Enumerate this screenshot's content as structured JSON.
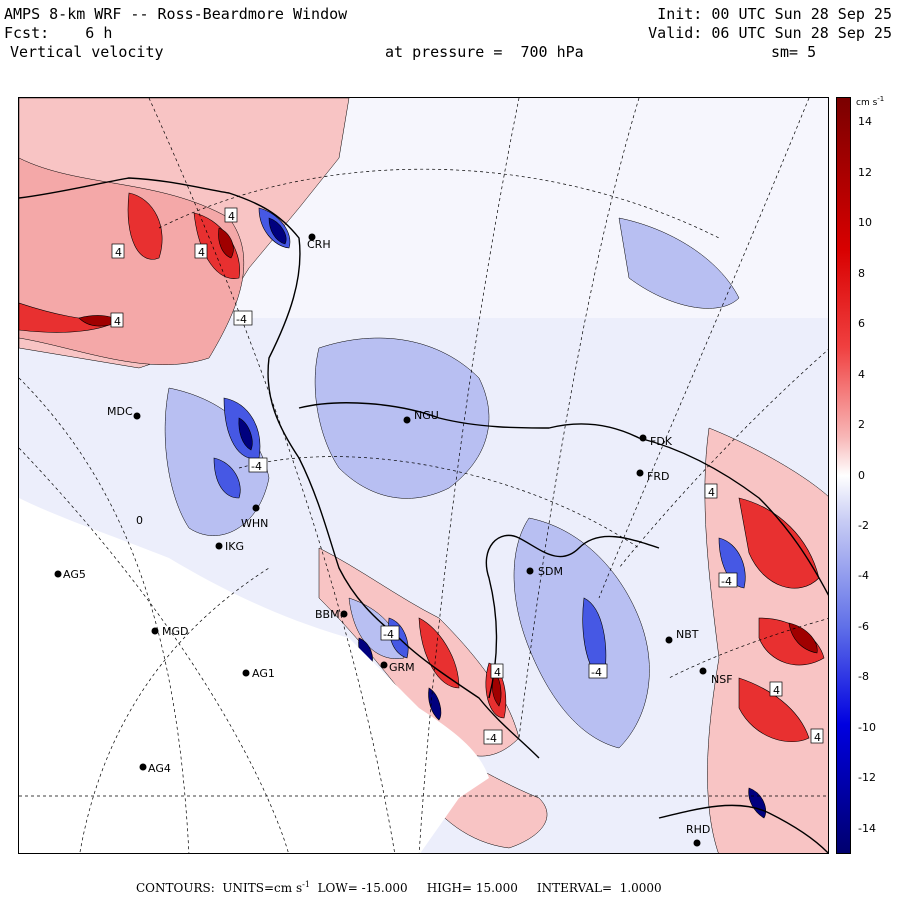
{
  "header": {
    "title": "AMPS 8-km WRF -- Ross-Beardmore Window",
    "init": "Init: 00 UTC Sun 28 Sep 25",
    "fcst": "Fcst:    6 h",
    "valid": "Valid: 06 UTC Sun 28 Sep 25",
    "field": "Vertical velocity",
    "level": "at pressure =  700 hPa",
    "smooth": "sm= 5"
  },
  "colorbar": {
    "units": "cm s-1",
    "units_base": "cm s",
    "units_exp": "-1",
    "ticks": [
      "14",
      "12",
      "10",
      "8",
      "6",
      "4",
      "2",
      "0",
      "-2",
      "-4",
      "-6",
      "-8",
      "-10",
      "-12",
      "-14"
    ],
    "range": [
      -15,
      15
    ],
    "colors": {
      "max": "#7a0000",
      "strong_pos": "#d80000",
      "mid_pos": "#f04040",
      "weak_pos": "#f8b8b8",
      "near_zero": "#ffffff",
      "weak_neg": "#c8ccf4",
      "mid_neg": "#6070e8",
      "strong_neg": "#0000e0",
      "min": "#00006e"
    }
  },
  "stations": [
    "CRH",
    "MDC",
    "NGU",
    "FDK",
    "FRD",
    "WHN",
    "IKG",
    "AG5",
    "SDM",
    "BBM",
    "MGD",
    "NBT",
    "AG1",
    "GRM",
    "NSF",
    "AG4",
    "RHD"
  ],
  "contour_labels": [
    "4",
    "4",
    "4",
    "4",
    "-4",
    "-4",
    "0",
    "4",
    "-4",
    "-4",
    "4",
    "-4",
    "-4",
    "4",
    "4"
  ],
  "footer": {
    "contours_label": "CONTOURS:",
    "units_label": "UNITS=cm s",
    "units_exp": "-1",
    "low": "LOW= -15.000",
    "high": "HIGH= 15.000",
    "interval": "INTERVAL=  1.0000"
  }
}
